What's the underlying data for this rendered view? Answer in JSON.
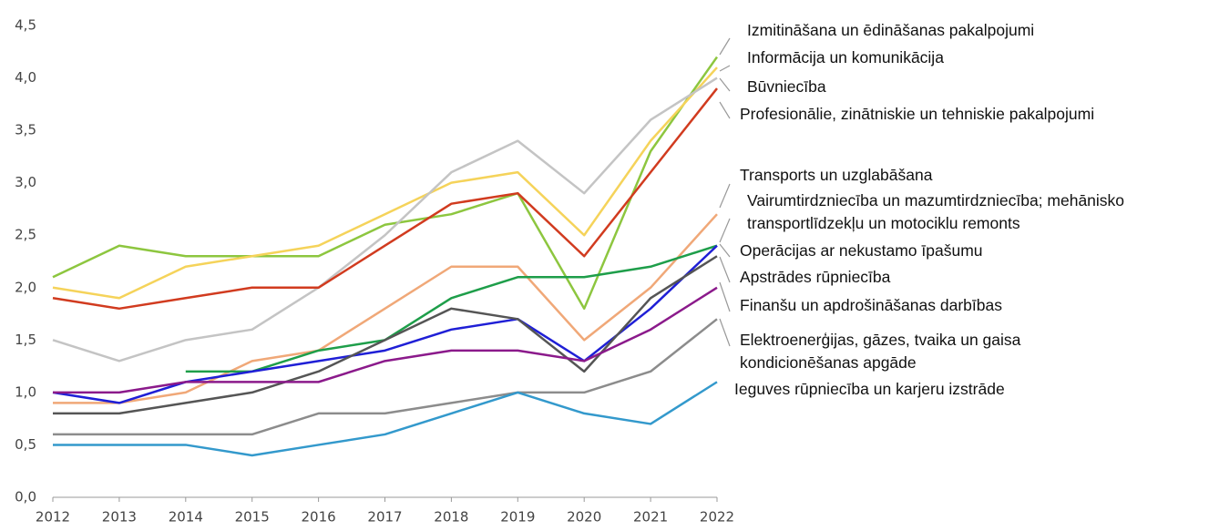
{
  "chart_data": {
    "type": "line",
    "categories": [
      "2012",
      "2013",
      "2014",
      "2015",
      "2016",
      "2017",
      "2018",
      "2019",
      "2020",
      "2021",
      "2022"
    ],
    "ylim": [
      0,
      4.5
    ],
    "yticks": [
      {
        "value": 0,
        "label": "0,0"
      },
      {
        "value": 0.5,
        "label": "0,5"
      },
      {
        "value": 1,
        "label": "1,0"
      },
      {
        "value": 1.5,
        "label": "1,5"
      },
      {
        "value": 2,
        "label": "2,0"
      },
      {
        "value": 2.5,
        "label": "2,5"
      },
      {
        "value": 3,
        "label": "3,0"
      },
      {
        "value": 3.5,
        "label": "3,5"
      },
      {
        "value": 4,
        "label": "4,0"
      },
      {
        "value": 4.5,
        "label": "4,5"
      }
    ],
    "grid": false,
    "series": [
      {
        "name": "Izmitināšana un ēdināšanas pakalpojumi",
        "color": "#8dc63f",
        "values": [
          2.1,
          2.4,
          2.3,
          2.3,
          2.3,
          2.6,
          2.7,
          2.9,
          1.8,
          3.3,
          4.2
        ]
      },
      {
        "name": "Informācija un komunikācija",
        "color": "#f5d35a",
        "values": [
          2.0,
          1.9,
          2.2,
          2.3,
          2.4,
          2.7,
          3.0,
          3.1,
          2.5,
          3.4,
          4.1
        ]
      },
      {
        "name": "Būvniecība",
        "color": "#c4c4c4",
        "values": [
          1.5,
          1.3,
          1.5,
          1.6,
          2.0,
          2.5,
          3.1,
          3.4,
          2.9,
          3.6,
          4.0
        ]
      },
      {
        "name": "Profesionālie, zinātniskie un tehniskie pakalpojumi",
        "color": "#d13b1f",
        "values": [
          1.9,
          1.8,
          1.9,
          2.0,
          2.0,
          2.4,
          2.8,
          2.9,
          2.3,
          3.1,
          3.9
        ]
      },
      {
        "name": "Transports un uzglabāšana",
        "color": "#f0a878",
        "values": [
          0.9,
          0.9,
          1.0,
          1.3,
          1.4,
          1.8,
          2.2,
          2.2,
          1.5,
          2.0,
          2.7
        ]
      },
      {
        "name": "Vairumtirdzniecība un mazumtirdzniecība; mehānisko transportlīdzekļu un motociklu remonts",
        "color": "#1e9e4a",
        "values": [
          null,
          null,
          1.2,
          1.2,
          1.4,
          1.5,
          1.9,
          2.1,
          2.1,
          2.2,
          2.4
        ]
      },
      {
        "name": "Operācijas ar nekustamo īpašumu",
        "color": "#1f1fd6",
        "values": [
          1.0,
          0.9,
          1.1,
          1.2,
          1.3,
          1.4,
          1.6,
          1.7,
          1.3,
          1.8,
          2.4
        ]
      },
      {
        "name": "Apstrādes rūpniecība",
        "color": "#555555",
        "values": [
          0.8,
          0.8,
          0.9,
          1.0,
          1.2,
          1.5,
          1.8,
          1.7,
          1.2,
          1.9,
          2.3
        ]
      },
      {
        "name": "Finanšu un apdrošināšanas darbības",
        "color": "#8b1a8b",
        "values": [
          1.0,
          1.0,
          1.1,
          1.1,
          1.1,
          1.3,
          1.4,
          1.4,
          1.3,
          1.6,
          2.0
        ]
      },
      {
        "name": "Elektroenerģijas, gāzes, tvaika un gaisa kondicionēšanas apgāde",
        "color": "#8c8c8c",
        "values": [
          0.6,
          0.6,
          0.6,
          0.6,
          0.8,
          0.8,
          0.9,
          1.0,
          1.0,
          1.2,
          1.7
        ]
      },
      {
        "name": "Ieguves rūpniecība un karjeru izstrāde",
        "color": "#3399cc",
        "values": [
          0.5,
          0.5,
          0.5,
          0.4,
          0.5,
          0.6,
          0.8,
          1.0,
          0.8,
          0.7,
          1.1
        ]
      }
    ]
  }
}
